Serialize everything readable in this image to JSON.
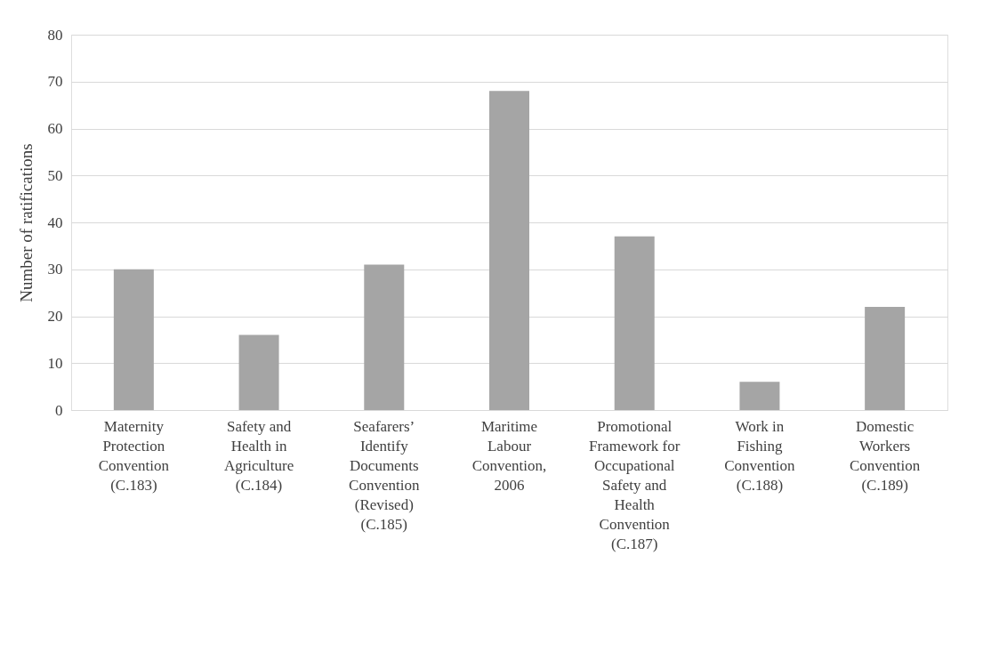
{
  "chart_data": {
    "type": "bar",
    "ylabel": "Number of ratifications",
    "categories": [
      "Maternity Protection Convention (C.183)",
      "Safety and Health in Agriculture (C.184)",
      "Seafarers’ Identify Documents Convention (Revised) (C.185)",
      "Maritime Labour Convention, 2006",
      "Promotional Framework for Occupational Safety and Health Convention (C.187)",
      "Work in Fishing Convention (C.188)",
      "Domestic Workers Convention (C.189)"
    ],
    "values": [
      30,
      16,
      31,
      68,
      37,
      6,
      22
    ],
    "color": "#a5a5a5",
    "ylim": [
      0,
      80
    ],
    "yticks": [
      0,
      10,
      20,
      30,
      40,
      50,
      60,
      70,
      80
    ],
    "grid": "y"
  }
}
